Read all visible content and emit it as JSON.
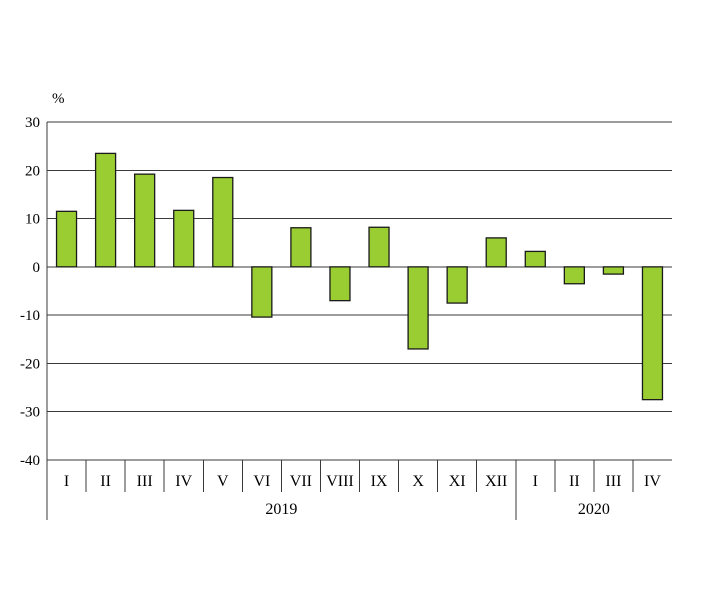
{
  "chart_data": {
    "type": "bar",
    "title": "",
    "ylabel": "%",
    "xlabel": "",
    "ylim": [
      -40,
      30
    ],
    "yticks": [
      30,
      20,
      10,
      0,
      -10,
      -20,
      -30,
      -40
    ],
    "grid": true,
    "legend_position": "none",
    "bar_color": "#9ACD32",
    "bar_border": "#1a1a1a",
    "grid_color": "#3a3a3a",
    "text_color": "#000000",
    "groups": [
      {
        "label": "2019",
        "categories": [
          "I",
          "II",
          "III",
          "IV",
          "V",
          "VI",
          "VII",
          "VIII",
          "IX",
          "X",
          "XI",
          "XII"
        ],
        "values": [
          11.5,
          23.5,
          19.2,
          11.7,
          18.5,
          -10.4,
          8.1,
          -7.0,
          8.2,
          -17.0,
          -7.5,
          6.0
        ]
      },
      {
        "label": "2020",
        "categories": [
          "I",
          "II",
          "III",
          "IV"
        ],
        "values": [
          3.2,
          -3.5,
          -1.5,
          -27.5
        ]
      }
    ]
  }
}
